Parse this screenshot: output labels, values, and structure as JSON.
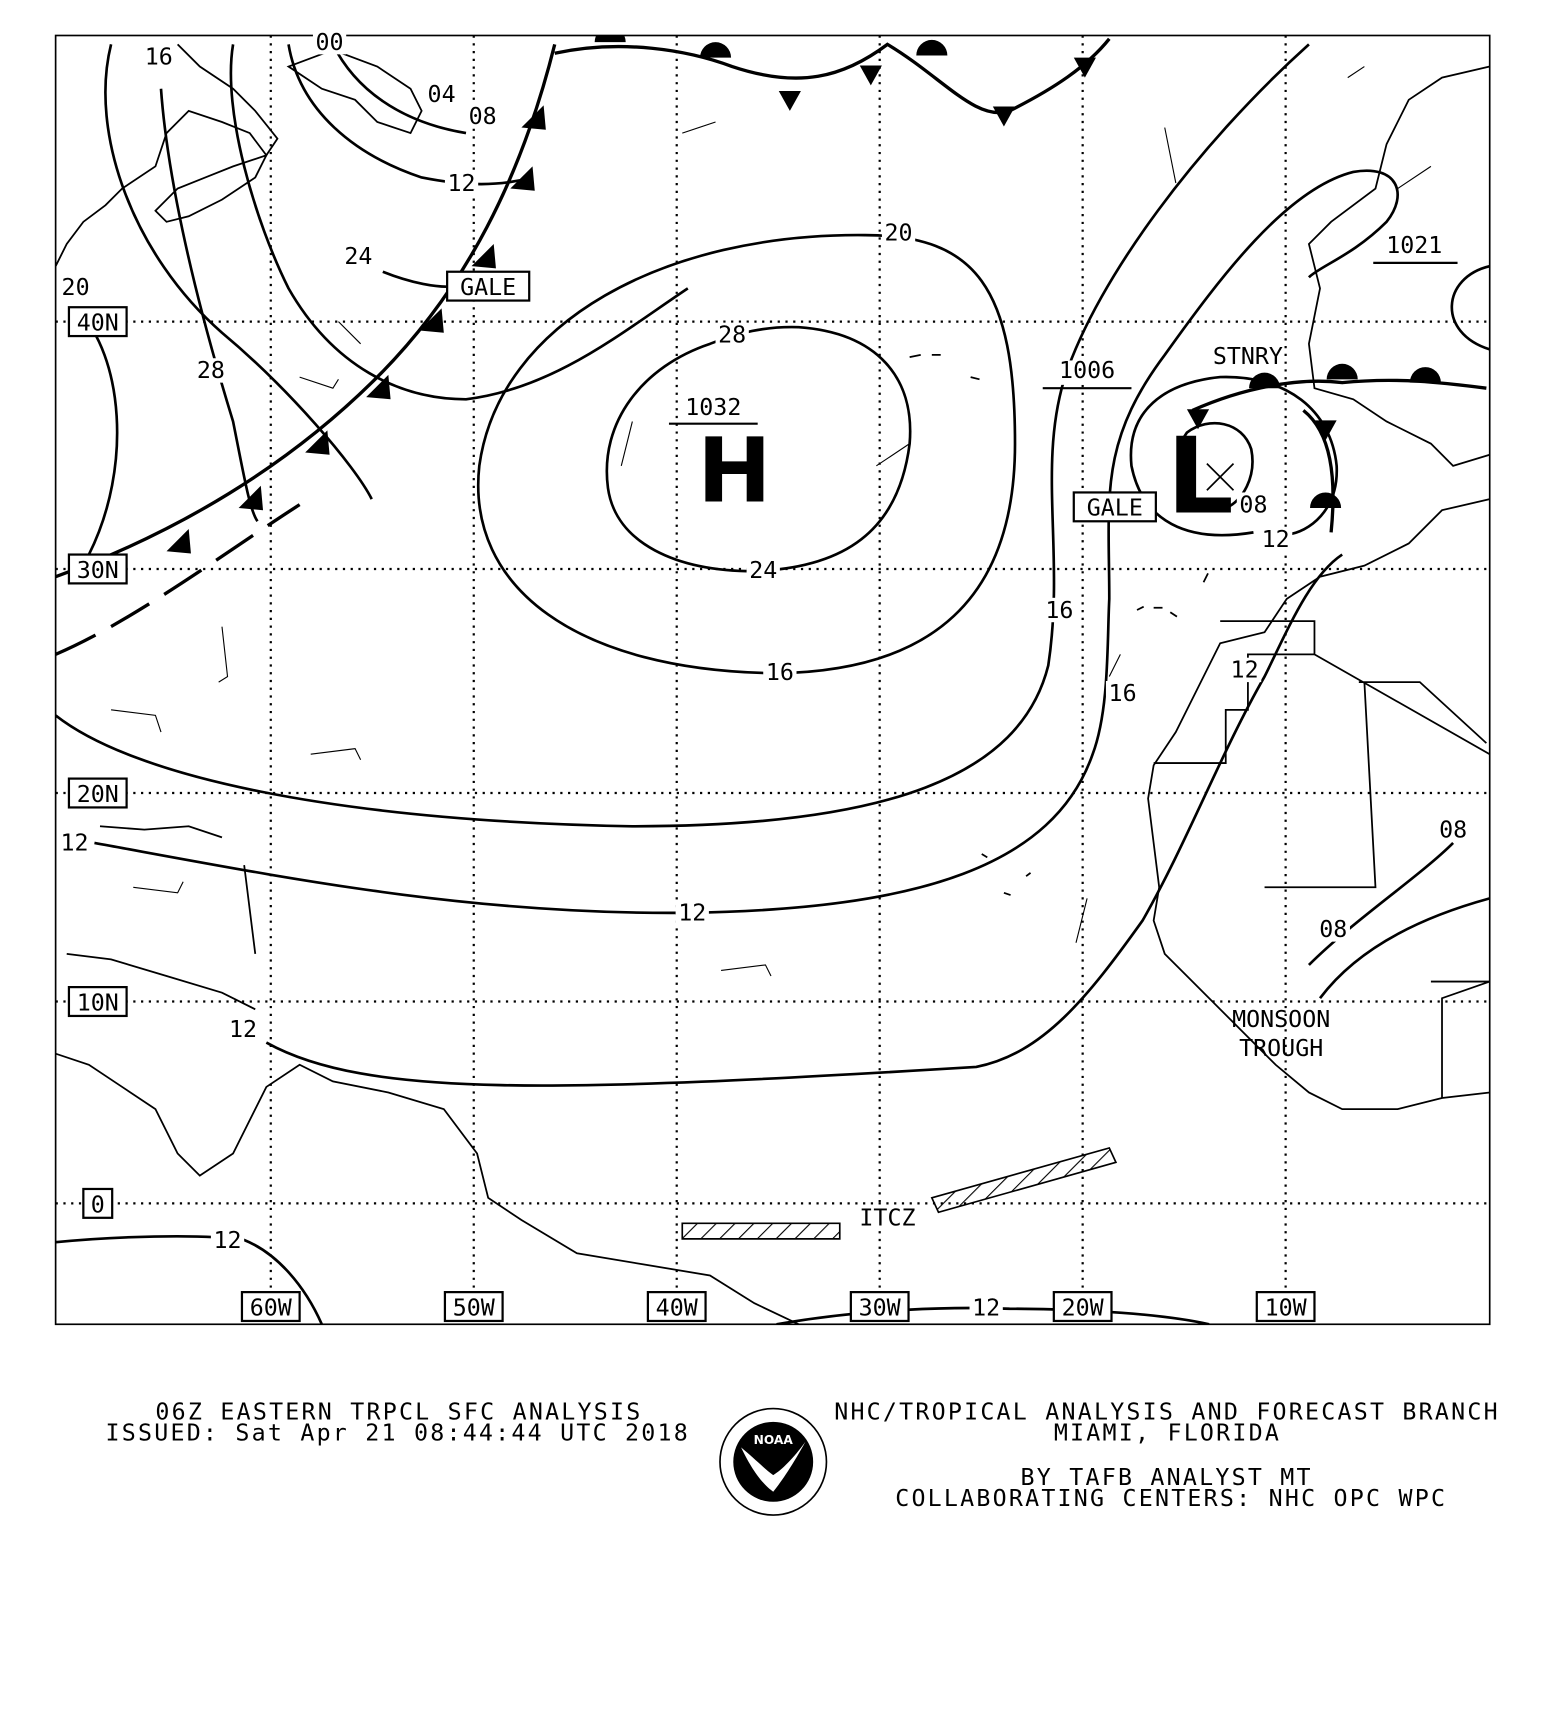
{
  "map": {
    "latitude_labels": [
      "40N",
      "30N",
      "20N",
      "10N",
      "0"
    ],
    "longitude_labels": [
      "60W",
      "50W",
      "40W",
      "30W",
      "20W",
      "10W"
    ],
    "high_center": {
      "symbol": "H",
      "pressure": "1032"
    },
    "low_center": {
      "symbol": "L",
      "pressure": "1006"
    },
    "other_pressure": "1021",
    "front_label": "STNRY",
    "gale_labels": [
      "GALE",
      "GALE"
    ],
    "itcz_label": "ITCZ",
    "monsoon_trough_label": [
      "MONSOON",
      "TROUGH"
    ],
    "isobar_labels": [
      "16",
      "00",
      "04",
      "08",
      "12",
      "24",
      "20",
      "28",
      "28",
      "24",
      "20",
      "16",
      "16",
      "12",
      "12",
      "16",
      "12",
      "12",
      "08",
      "08",
      "08",
      "12",
      "12",
      "12"
    ]
  },
  "footer": {
    "title": "06Z EASTERN TRPCL SFC ANALYSIS",
    "issued": "ISSUED: Sat Apr 21 08:44:44 UTC 2018",
    "office": "NHC/TROPICAL ANALYSIS AND FORECAST BRANCH",
    "location": "MIAMI,  FLORIDA",
    "analyst": "BY TAFB ANALYST  MT",
    "collab": "COLLABORATING CENTERS: NHC OPC WPC",
    "logo_text": "NOAA"
  }
}
